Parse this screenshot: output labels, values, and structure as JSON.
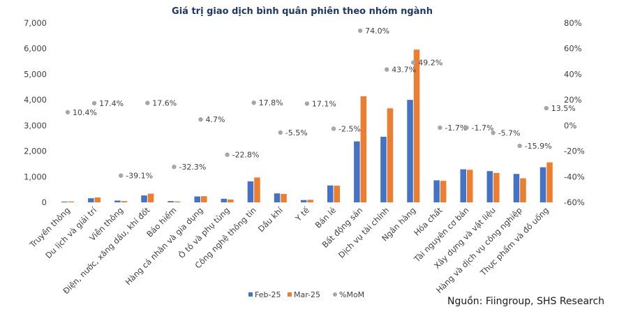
{
  "chart_data": {
    "type": "bar",
    "title": "Giá trị giao dịch bình quân phiên theo nhóm ngành",
    "categories": [
      "Truyền thông",
      "Du lịch và giải trí",
      "Viễn thông",
      "Điện, nước, xăng dầu, khí đốt",
      "Bảo hiểm",
      "Hàng cá nhân và gia dụng",
      "Ô tô và phụ tùng",
      "Công nghệ thông tin",
      "Dầu khí",
      "Y tế",
      "Bán lẻ",
      "Bất động sản",
      "Dịch vụ tài chính",
      "Ngân hàng",
      "Hóa chất",
      "Tài nguyên cơ bản",
      "Xây dựng và vật liệu",
      "Hàng và dịch vụ công nghiệp",
      "Thực phẩm và đồ uống"
    ],
    "series": [
      {
        "name": "Feb-25",
        "axis": "left",
        "color": "#4472c4",
        "values": [
          30,
          160,
          70,
          270,
          50,
          230,
          140,
          820,
          350,
          90,
          660,
          2380,
          2560,
          4000,
          860,
          1290,
          1220,
          1110,
          1370
        ]
      },
      {
        "name": "Mar-25",
        "axis": "left",
        "color": "#ed7d31",
        "values": [
          35,
          190,
          50,
          340,
          35,
          240,
          110,
          970,
          330,
          100,
          650,
          4140,
          3670,
          5960,
          840,
          1270,
          1150,
          940,
          1560
        ]
      },
      {
        "name": "%MoM",
        "axis": "right",
        "type": "scatter",
        "color": "#a6a6a6",
        "values": [
          10.4,
          17.4,
          -39.1,
          17.6,
          -32.3,
          4.7,
          -22.8,
          17.8,
          -5.5,
          17.1,
          -2.5,
          74.0,
          43.7,
          49.2,
          -1.7,
          -1.7,
          -5.7,
          -15.9,
          13.5
        ],
        "labels": [
          "10.4%",
          "17.4%",
          "-39.1%",
          "17.6%",
          "-32.3%",
          "4.7%",
          "-22.8%",
          "17.8%",
          "-5.5%",
          "17.1%",
          "-2.5%",
          "74.0%",
          "43.7%",
          "49.2%",
          "-1.7%",
          "-1.7%",
          "-5.7%",
          "-15.9%",
          "13.5%"
        ]
      }
    ],
    "ylim": [
      0,
      7000
    ],
    "yticks": [
      "0",
      "1,000",
      "2,000",
      "3,000",
      "4,000",
      "5,000",
      "6,000",
      "7,000"
    ],
    "y2lim": [
      -60,
      80
    ],
    "y2ticks": [
      "-60%",
      "-40%",
      "-20%",
      "0%",
      "20%",
      "40%",
      "60%",
      "80%"
    ],
    "grid": false,
    "legend_position": "bottom"
  },
  "footer": {
    "source": "Nguồn: Fiingroup, SHS Research"
  }
}
